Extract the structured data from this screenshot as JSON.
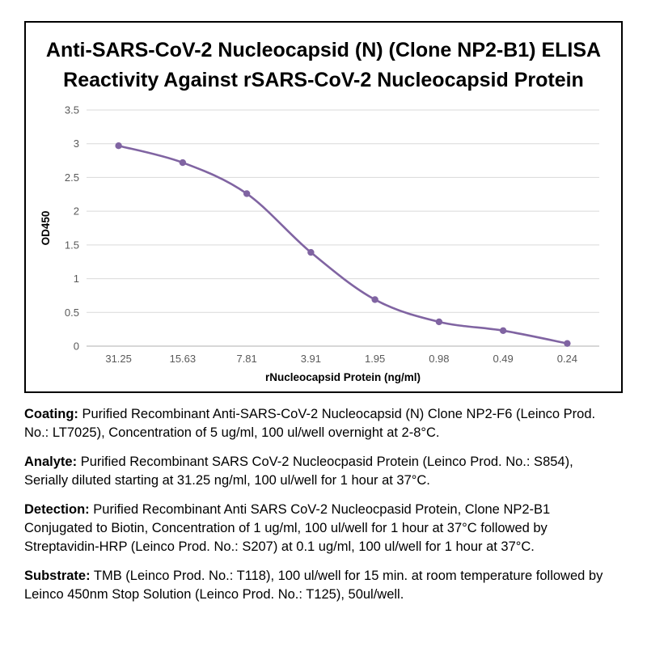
{
  "figure": {
    "title_line1": "Anti-SARS-CoV-2 Nucleocapsid (N) (Clone NP2-B1) ELISA",
    "title_line2": "Reactivity Against rSARS-CoV-2 Nucleocapsid Protein"
  },
  "chart_data": {
    "type": "line",
    "title": "Anti-SARS-CoV-2 Nucleocapsid (N) (Clone NP2-B1) ELISA Reactivity Against rSARS-CoV-2 Nucleocapsid Protein",
    "categories": [
      "31.25",
      "15.63",
      "7.81",
      "3.91",
      "1.95",
      "0.98",
      "0.49",
      "0.24"
    ],
    "values": [
      2.97,
      2.72,
      2.26,
      1.39,
      0.69,
      0.36,
      0.23,
      0.04
    ],
    "xlabel": "rNucleocapsid Protein (ng/ml)",
    "ylabel": "OD450",
    "ylim": [
      0,
      3.5
    ],
    "yticks": [
      0,
      0.5,
      1,
      1.5,
      2,
      2.5,
      3,
      3.5
    ],
    "grid": true,
    "legend": "none",
    "marker": "circle",
    "line_color": "#8064A2",
    "grid_color": "#d9d9d9",
    "axis_color": "#bfbfbf",
    "tick_color": "#595959",
    "axis_title_color": "#000000"
  },
  "notes": [
    {
      "label": "Coating:",
      "text": " Purified Recombinant Anti-SARS-CoV-2 Nucleocapsid (N) Clone NP2-F6 (Leinco Prod. No.: LT7025), Concentration of 5 ug/ml, 100 ul/well overnight at 2-8°C."
    },
    {
      "label": "Analyte:",
      "text": " Purified Recombinant SARS CoV-2 Nucleocpasid Protein (Leinco Prod. No.: S854), Serially diluted starting at 31.25 ng/ml, 100 ul/well for 1 hour at 37°C."
    },
    {
      "label": "Detection:",
      "text": " Purified Recombinant Anti SARS CoV-2 Nucleocpasid Protein, Clone NP2-B1 Conjugated to Biotin, Concentration of 1 ug/ml, 100 ul/well for 1 hour at 37°C followed by Streptavidin-HRP (Leinco Prod. No.: S207) at 0.1 ug/ml, 100 ul/well for 1 hour at 37°C."
    },
    {
      "label": "Substrate:",
      "text": " TMB (Leinco Prod. No.: T118), 100 ul/well for 15 min. at room temperature followed by Leinco 450nm Stop Solution (Leinco Prod. No.: T125), 50ul/well."
    }
  ]
}
